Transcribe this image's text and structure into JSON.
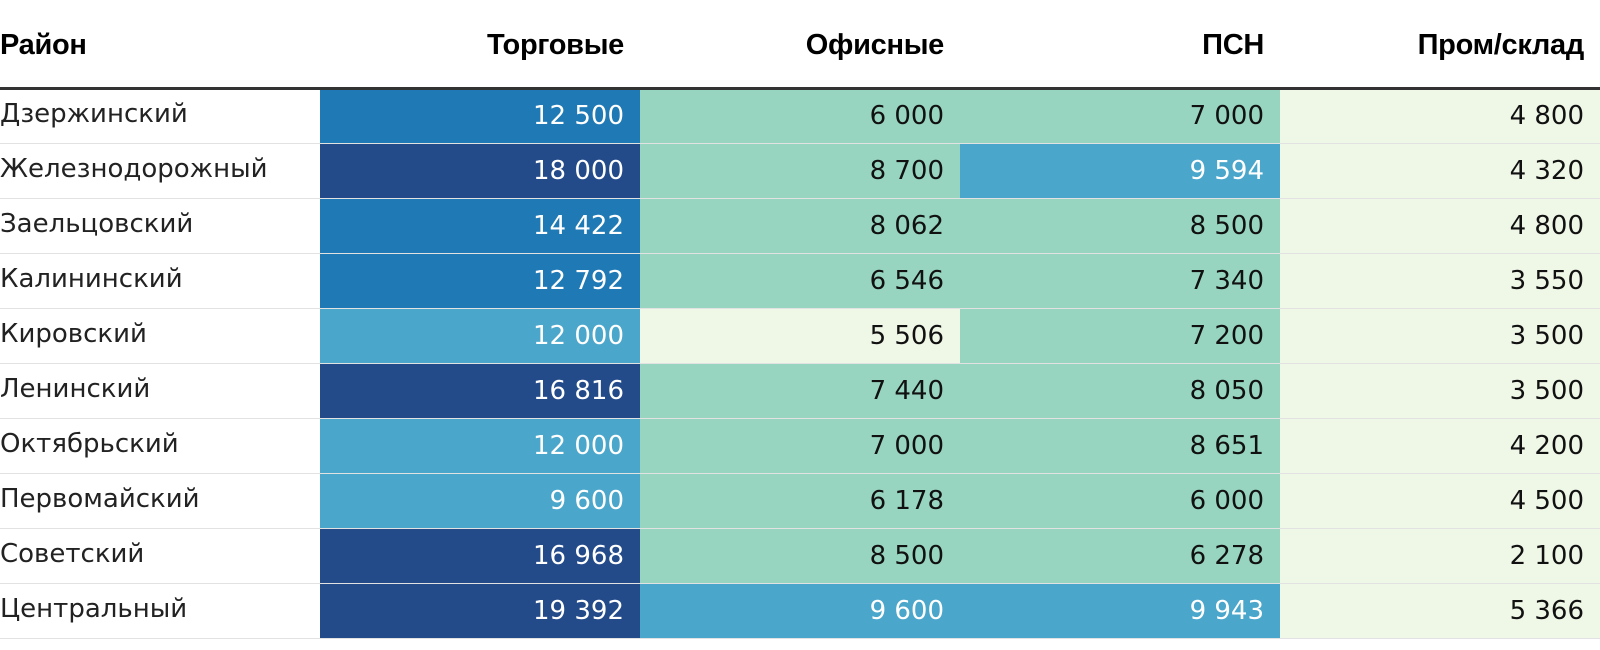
{
  "chart_data": {
    "type": "table",
    "columns": [
      "Район",
      "Торговые",
      "Офисные",
      "ПСН",
      "Пром/склад"
    ],
    "rows": [
      {
        "district": "Дзержинский",
        "values": [
          "12 500",
          "6 000",
          "7 000",
          "4 800"
        ],
        "levels": [
          3,
          1,
          1,
          0
        ]
      },
      {
        "district": "Железнодорожный",
        "values": [
          "18 000",
          "8 700",
          "9 594",
          "4 320"
        ],
        "levels": [
          4,
          1,
          2,
          0
        ]
      },
      {
        "district": "Заельцовский",
        "values": [
          "14 422",
          "8 062",
          "8 500",
          "4 800"
        ],
        "levels": [
          3,
          1,
          1,
          0
        ]
      },
      {
        "district": "Калининский",
        "values": [
          "12 792",
          "6 546",
          "7 340",
          "3 550"
        ],
        "levels": [
          3,
          1,
          1,
          0
        ]
      },
      {
        "district": "Кировский",
        "values": [
          "12 000",
          "5 506",
          "7 200",
          "3 500"
        ],
        "levels": [
          2,
          0,
          1,
          0
        ]
      },
      {
        "district": "Ленинский",
        "values": [
          "16 816",
          "7 440",
          "8 050",
          "3 500"
        ],
        "levels": [
          4,
          1,
          1,
          0
        ]
      },
      {
        "district": "Октябрьский",
        "values": [
          "12 000",
          "7 000",
          "8 651",
          "4 200"
        ],
        "levels": [
          2,
          1,
          1,
          0
        ]
      },
      {
        "district": "Первомайский",
        "values": [
          "9 600",
          "6 178",
          "6 000",
          "4 500"
        ],
        "levels": [
          2,
          1,
          1,
          0
        ]
      },
      {
        "district": "Советский",
        "values": [
          "16 968",
          "8 500",
          "6 278",
          "2 100"
        ],
        "levels": [
          4,
          1,
          1,
          0
        ]
      },
      {
        "district": "Центральный",
        "values": [
          "19 392",
          "9 600",
          "9 943",
          "5 366"
        ],
        "levels": [
          4,
          2,
          2,
          0
        ]
      }
    ],
    "color_scale": [
      "#eff7e7",
      "#97d5c0",
      "#4aa7cb",
      "#1e79b5",
      "#234a89"
    ],
    "text_colors": [
      "#111111",
      "#111111",
      "#ffffff",
      "#ffffff",
      "#ffffff"
    ]
  }
}
